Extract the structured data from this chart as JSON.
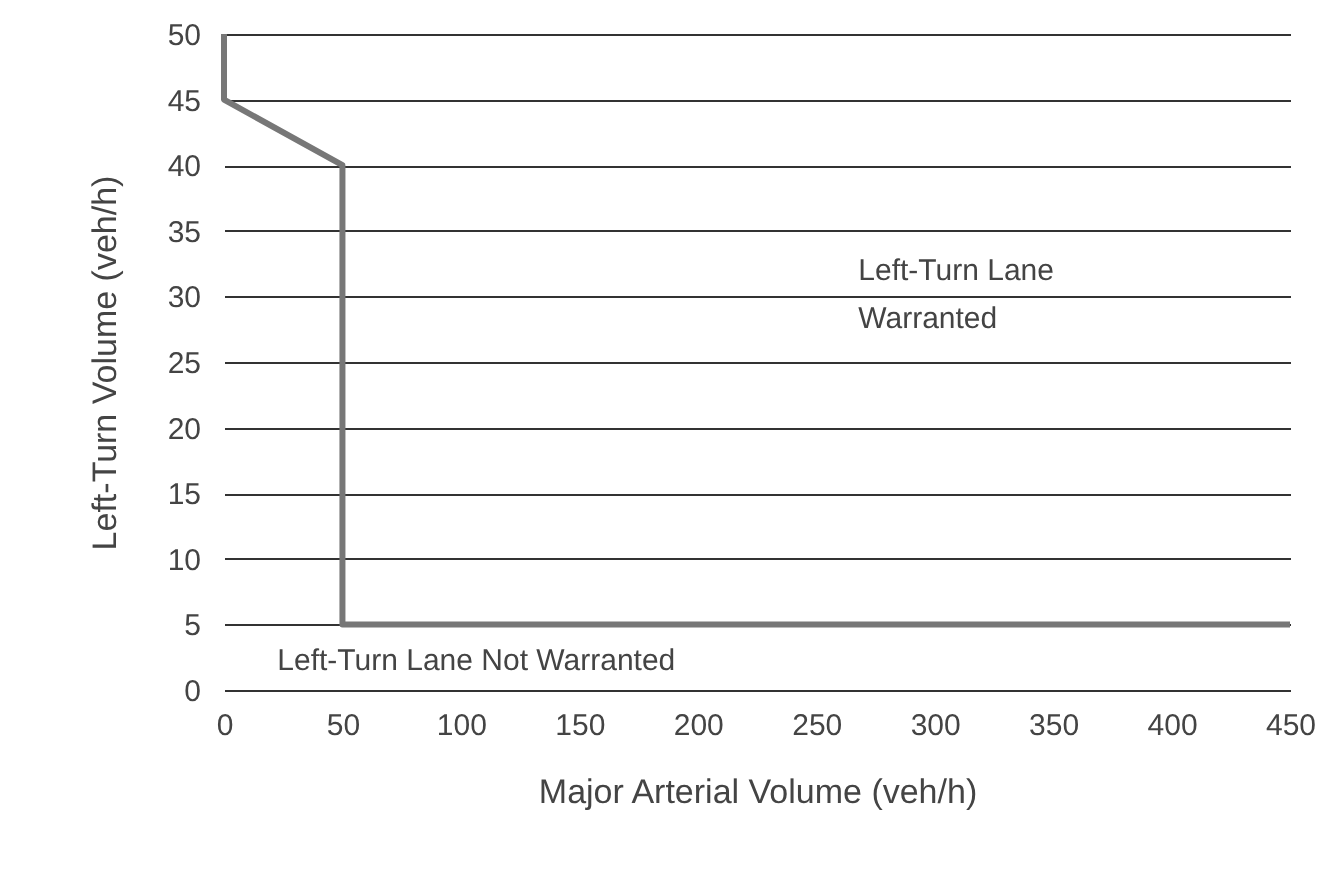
{
  "chart_data": {
    "type": "line",
    "xlabel": "Major Arterial Volume (veh/h)",
    "ylabel": "Left-Turn Volume (veh/h)",
    "series": [
      {
        "color": "#777777",
        "x": [
          0,
          0,
          50,
          50,
          450
        ],
        "values": [
          50,
          45,
          40,
          5,
          5
        ]
      }
    ],
    "xlim": [
      0,
      450
    ],
    "xticks": [
      0,
      50,
      100,
      150,
      200,
      250,
      300,
      350,
      400,
      450
    ],
    "ylim": [
      0,
      50
    ],
    "yticks": [
      0,
      5,
      10,
      15,
      20,
      25,
      30,
      35,
      40,
      45,
      50
    ],
    "grid": "y",
    "marker": "none",
    "line_style": "solid",
    "annotations": [
      "Left-Turn Lane\nWarranted",
      "Left-Turn Lane Not Warranted"
    ]
  }
}
